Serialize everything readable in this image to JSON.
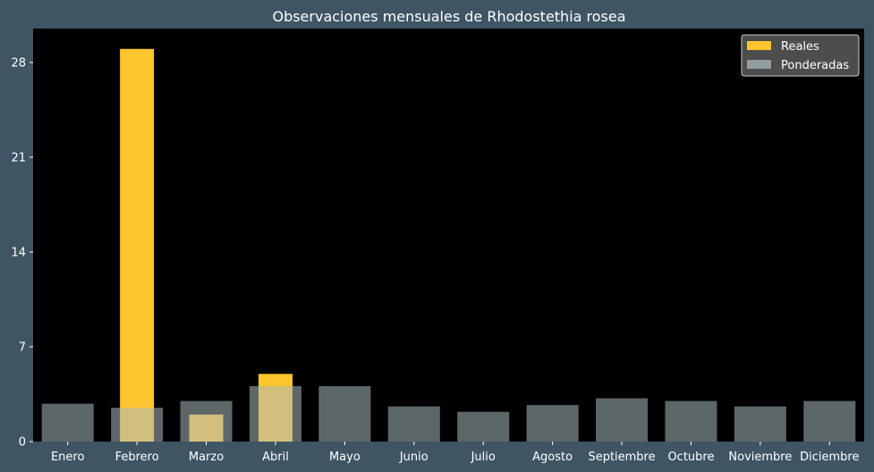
{
  "chart_data": {
    "type": "bar",
    "title": "Observaciones mensuales de Rhodostethia rosea",
    "xlabel": "",
    "ylabel": "",
    "categories": [
      "Enero",
      "Febrero",
      "Marzo",
      "Abril",
      "Mayo",
      "Junio",
      "Julio",
      "Agosto",
      "Septiembre",
      "Octubre",
      "Noviembre",
      "Diciembre"
    ],
    "series": [
      {
        "name": "Reales",
        "color": "#ffc52e",
        "values": [
          0,
          29,
          2,
          5,
          0,
          0,
          0,
          0,
          0,
          0,
          0,
          0
        ]
      },
      {
        "name": "Ponderadas",
        "color": "#a9b9bf",
        "opacity": 0.55,
        "values": [
          2.8,
          2.5,
          3.0,
          4.1,
          4.1,
          2.6,
          2.2,
          2.7,
          3.2,
          3.0,
          2.6,
          3.0
        ]
      }
    ],
    "yticks": [
      0,
      7,
      14,
      21,
      28
    ],
    "ylim": [
      0,
      30.5
    ],
    "grid": false,
    "legend_position": "top-right",
    "background": "#000000",
    "figure_background": "#3f5563"
  }
}
